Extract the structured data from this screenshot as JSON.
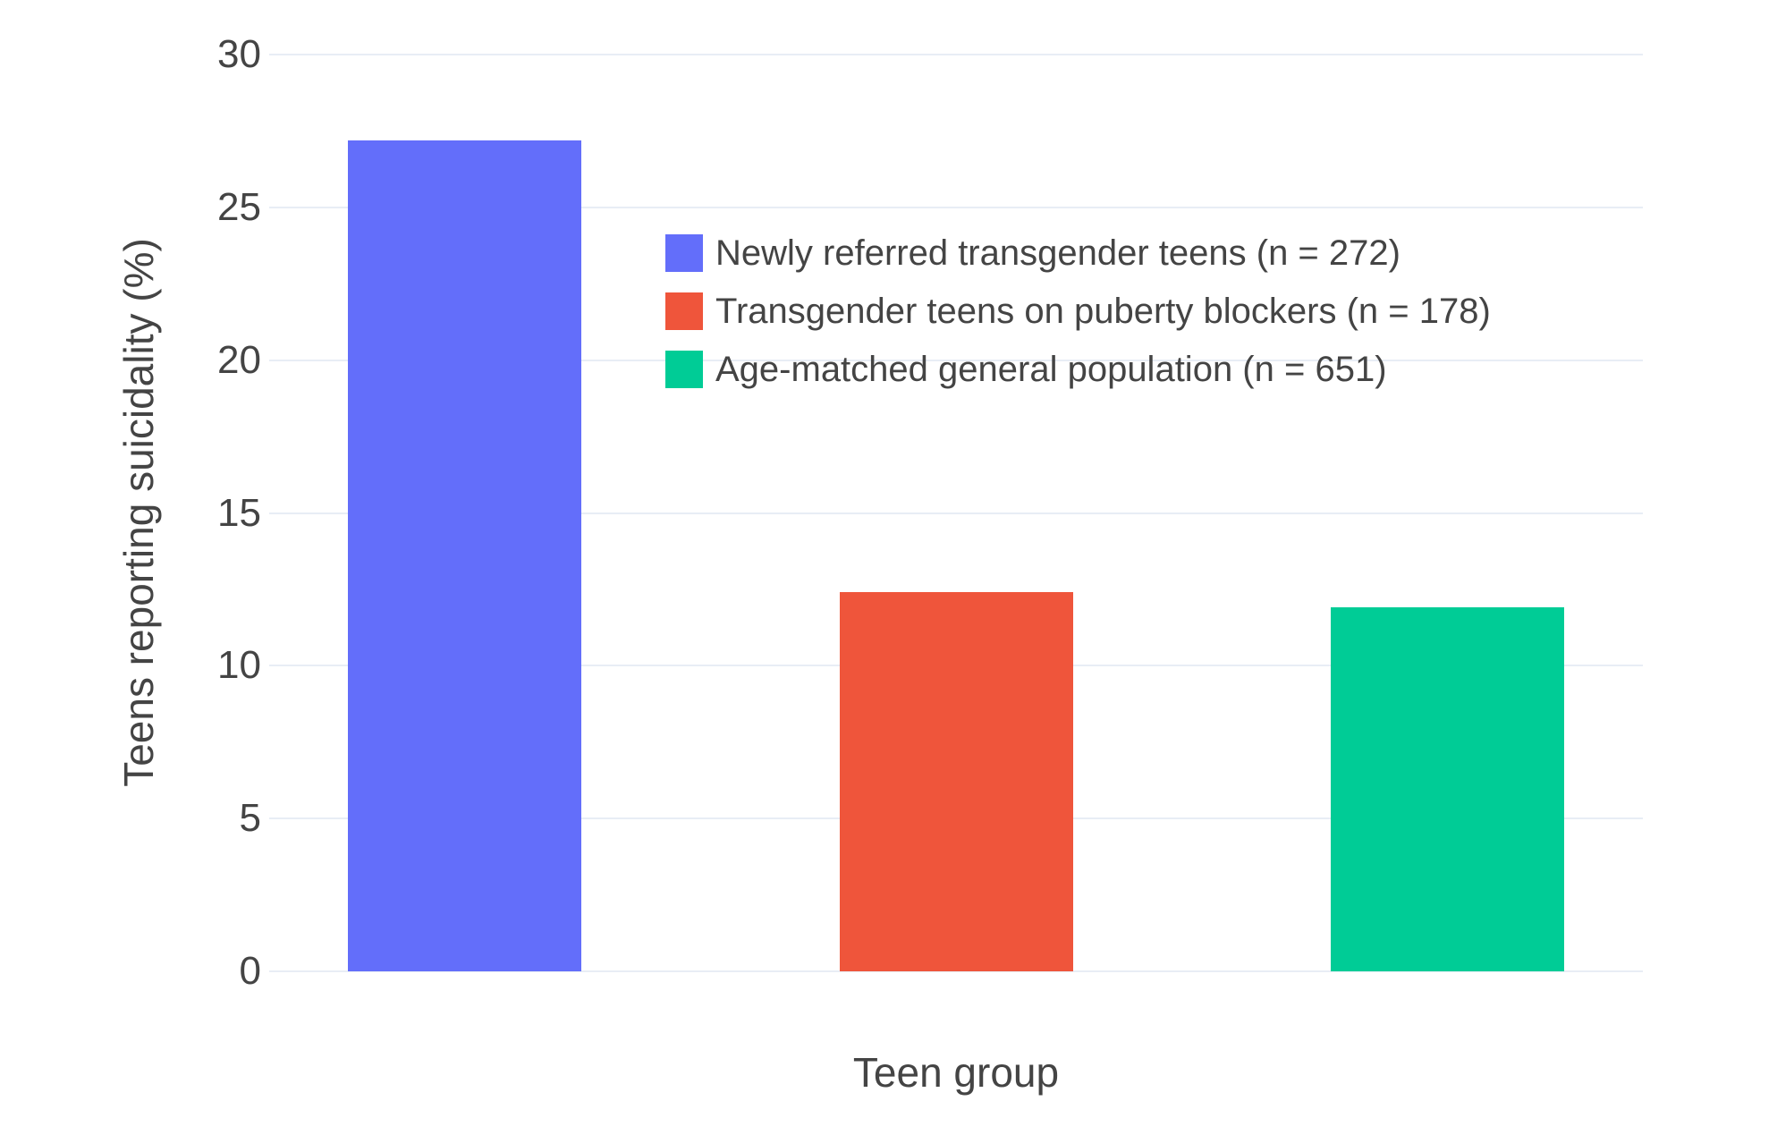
{
  "chart_data": {
    "type": "bar",
    "title": "",
    "xlabel": "Teen group",
    "ylabel": "Teens reporting suicidality (%)",
    "categories": [
      "Newly referred transgender teens (n = 272)",
      "Transgender teens on puberty blockers (n = 178)",
      "Age-matched general population (n = 651)"
    ],
    "values": [
      27.2,
      12.4,
      11.9
    ],
    "colors": [
      "#636EFA",
      "#EF553B",
      "#00CC96"
    ],
    "ylim": [
      0,
      30
    ],
    "yticks": [
      0,
      5,
      10,
      15,
      20,
      25,
      30
    ],
    "grid": true,
    "x_tick_labels_shown": false,
    "legend_position": "inside-top-center",
    "legend": [
      {
        "label": "Newly referred transgender teens (n = 272)",
        "color": "#636EFA"
      },
      {
        "label": "Transgender teens on puberty blockers (n = 178)",
        "color": "#EF553B"
      },
      {
        "label": "Age-matched general population (n = 651)",
        "color": "#00CC96"
      }
    ]
  },
  "styles": {
    "background_color": "#FFFFFF",
    "grid_color": "#E8EDF5",
    "text_color": "#444444"
  }
}
